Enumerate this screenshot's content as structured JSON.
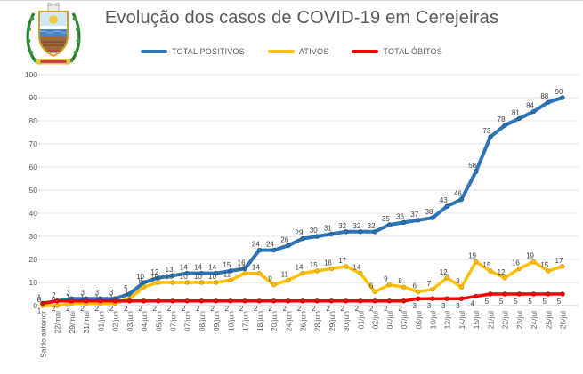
{
  "header": {
    "title": "Evolução dos casos de COVID-19 em Cerejeiras",
    "logo_name": "cerejeiras-coat-of-arms"
  },
  "colors": {
    "positivos": "#2E75B6",
    "ativos": "#FFC000",
    "obitos": "#FF0000",
    "text_muted": "#595959",
    "gridline": "#E3E3E3"
  },
  "chart_data": {
    "type": "line",
    "title": "Evolução dos casos de COVID-19 em Cerejeiras",
    "xlabel": "",
    "ylabel": "",
    "ylim": [
      0,
      100
    ],
    "yticks": [
      0,
      10,
      20,
      30,
      40,
      50,
      60,
      70,
      80,
      90,
      100
    ],
    "grid": true,
    "legend_position": "top",
    "data_labels": true,
    "categories": [
      "Saldo anterior",
      "22/mai",
      "29/mai",
      "31/mai",
      "01/jun",
      "02/jun",
      "03/jun",
      "04/jun",
      "05/jun",
      "07/jun",
      "07/jun",
      "08/jun",
      "09/jun",
      "10/jun",
      "17/jun",
      "18/jun",
      "20/jun",
      "24/jun",
      "26/jun",
      "28/jun",
      "29/jun",
      "30/jun",
      "01/jul",
      "02/jul",
      "04/jul",
      "07/jul",
      "08/jul",
      "10/jul",
      "12/jul",
      "14/jul",
      "15/jul",
      "21/jul",
      "22/jul",
      "23/jul",
      "24/jul",
      "25/jul",
      "26/jul"
    ],
    "series": [
      {
        "name": "TOTAL POSITIVOS",
        "color": "#2E75B6",
        "label_position": "above",
        "values": [
          1,
          2,
          3,
          3,
          3,
          3,
          5,
          10,
          12,
          13,
          14,
          14,
          14,
          15,
          16,
          24,
          24,
          26,
          29,
          30,
          31,
          32,
          32,
          32,
          35,
          36,
          37,
          38,
          43,
          46,
          58,
          73,
          78,
          81,
          84,
          88,
          90
        ]
      },
      {
        "name": "ATIVOS",
        "color": "#FFC000",
        "label_position": "above",
        "values": [
          0,
          0,
          1,
          1,
          1,
          1,
          3,
          8,
          10,
          10,
          10,
          10,
          10,
          11,
          14,
          14,
          9,
          11,
          14,
          15,
          16,
          17,
          14,
          6,
          9,
          8,
          6,
          7,
          12,
          8,
          19,
          15,
          12,
          16,
          19,
          15,
          17
        ]
      },
      {
        "name": "TOTAL ÓBITOS",
        "color": "#FF0000",
        "label_position": "below",
        "values": [
          1,
          2,
          2,
          2,
          2,
          2,
          2,
          2,
          2,
          2,
          2,
          2,
          2,
          2,
          2,
          2,
          2,
          2,
          2,
          2,
          2,
          2,
          2,
          2,
          2,
          2,
          3,
          3,
          3,
          3,
          4,
          5,
          5,
          5,
          5,
          5,
          5
        ]
      }
    ]
  }
}
